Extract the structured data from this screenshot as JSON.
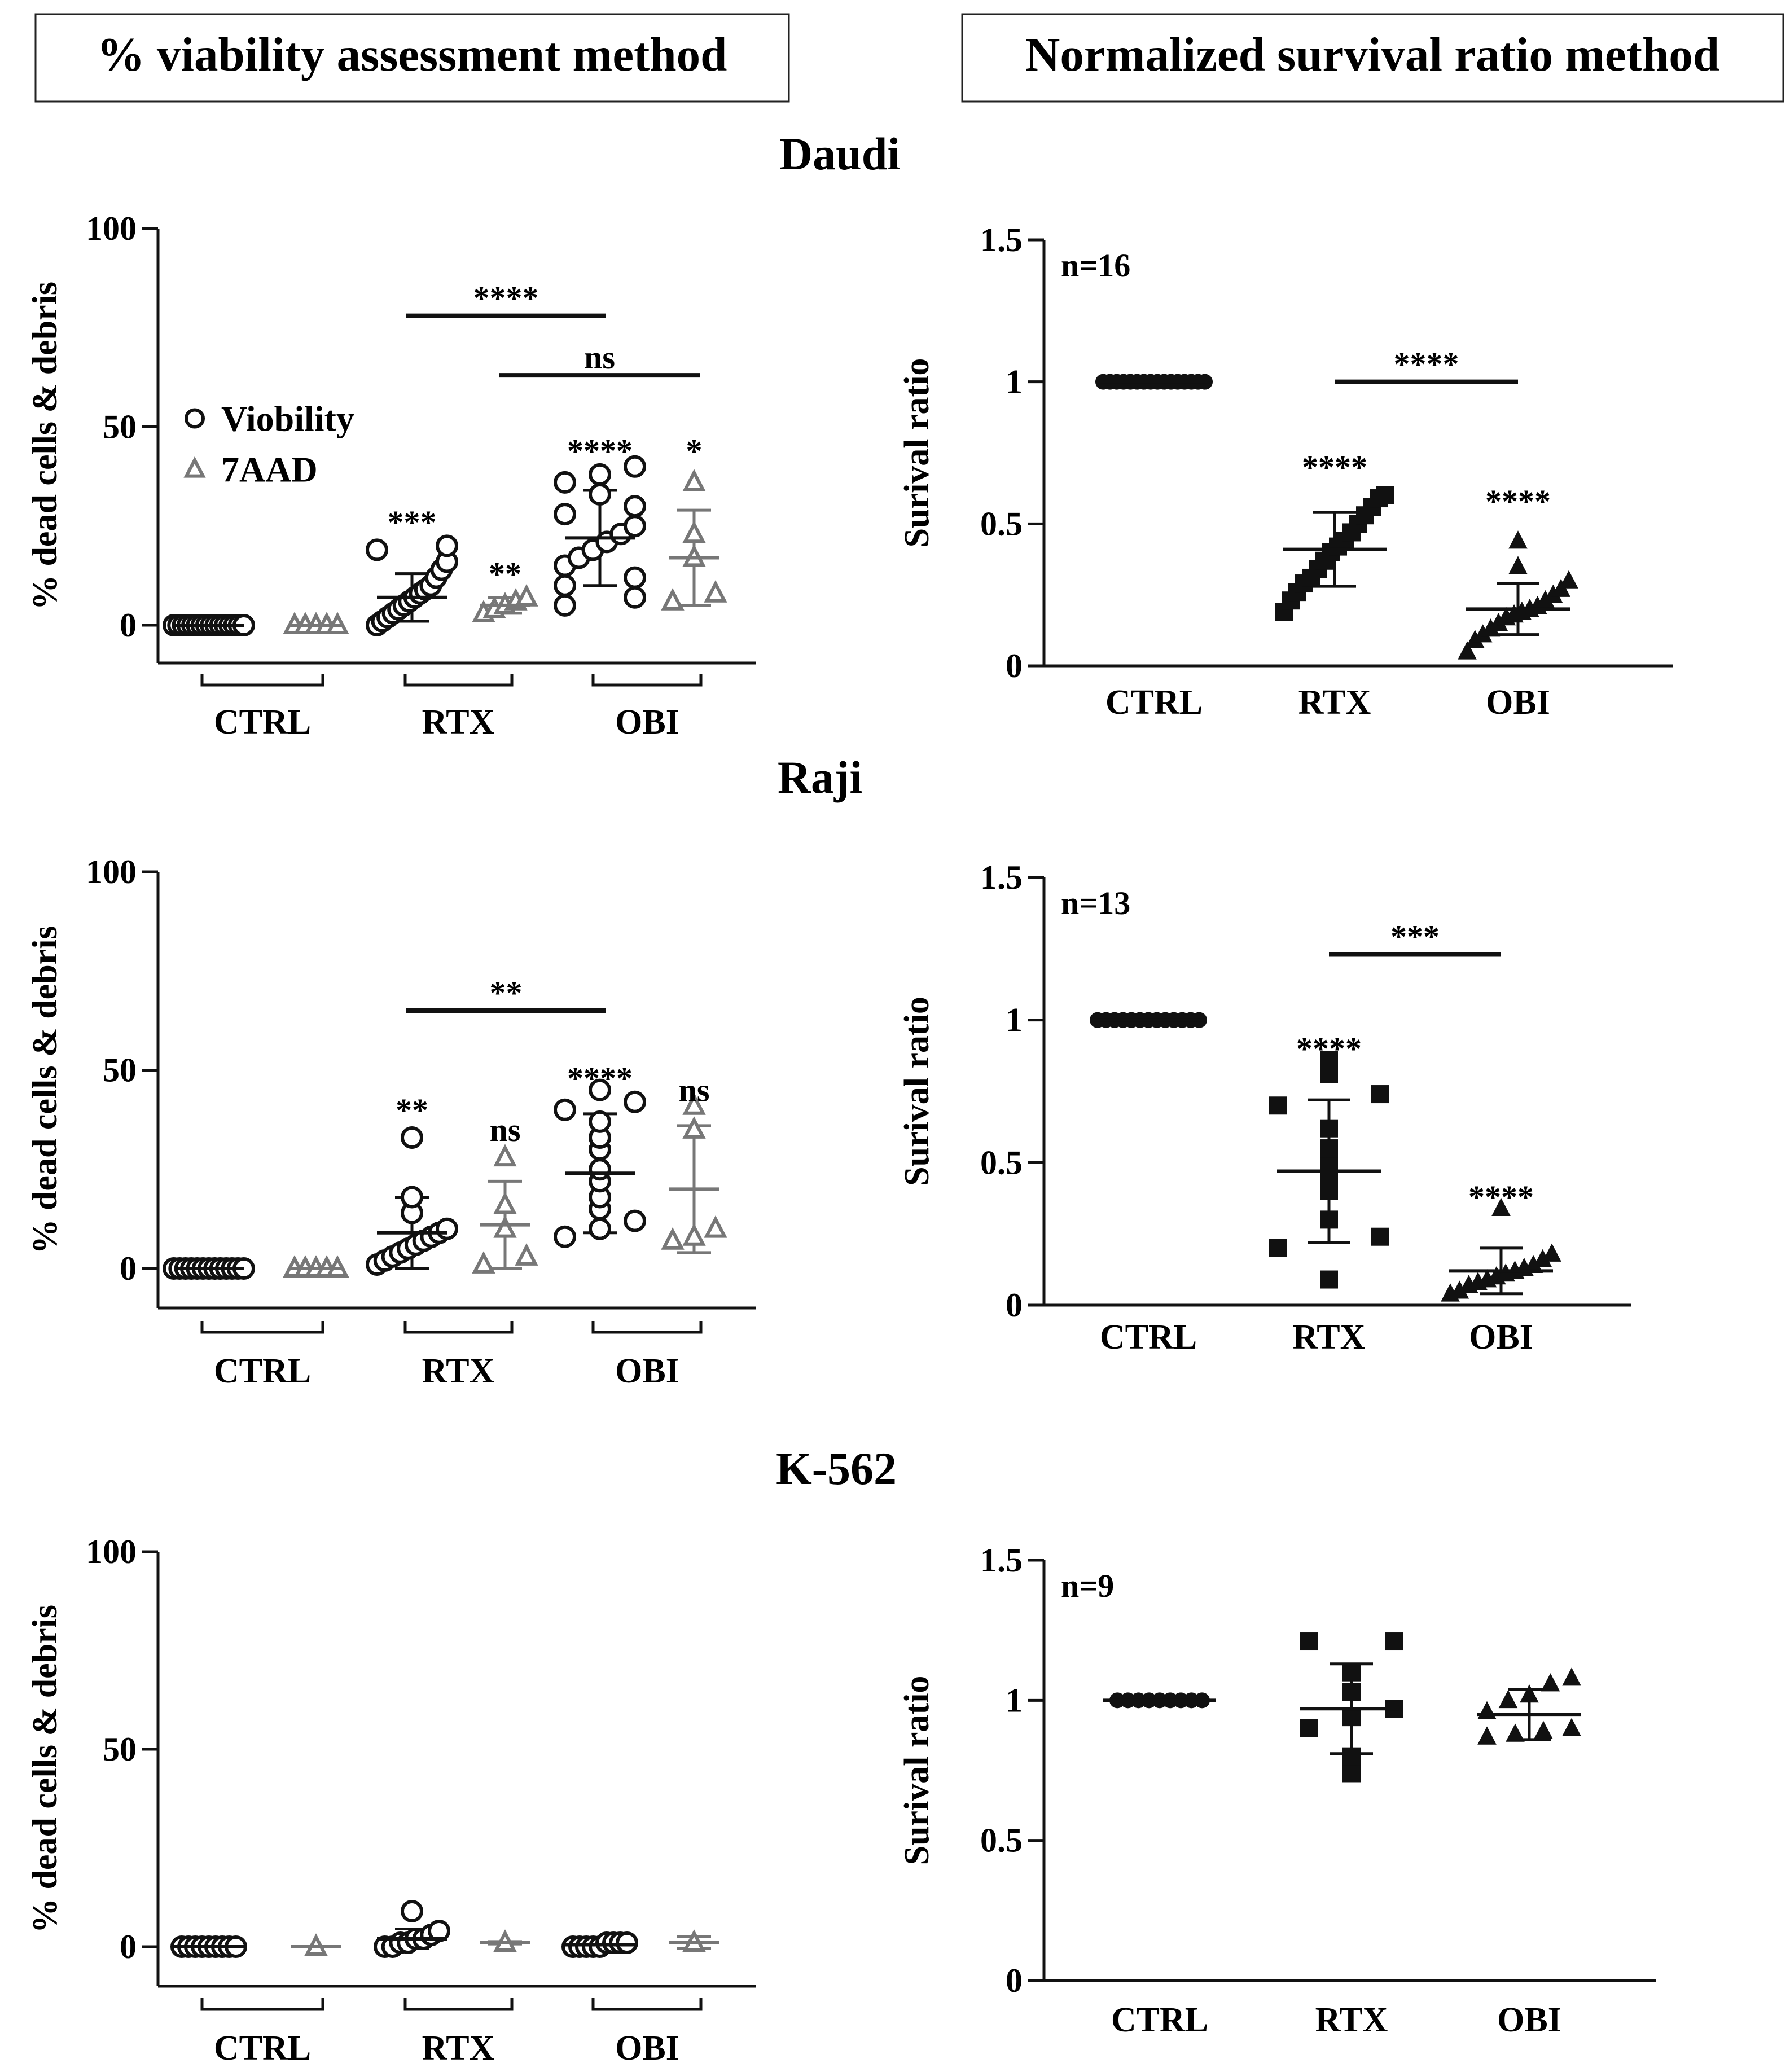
{
  "headers": {
    "left": "% viability assessment method",
    "right": "Normalized survival ratio method"
  },
  "cell_lines": [
    "Daudi",
    "Raji",
    "K-562"
  ],
  "colors": {
    "viobility": "#111111",
    "aad": "#777777",
    "ratio": "#111111"
  },
  "chart_data": [
    {
      "id": "daudi-viability",
      "type": "scatter",
      "title": "Daudi",
      "xlabel": "",
      "ylabel": "% dead cells & debris",
      "ylim": [
        0,
        100
      ],
      "yticks": [
        0,
        50,
        100
      ],
      "groups": [
        "CTRL",
        "RTX",
        "OBI"
      ],
      "legend": {
        "position": "upper-left",
        "entries": [
          "Viobility",
          "7AAD"
        ]
      },
      "series": [
        {
          "name": "Viobility",
          "marker": "circle-open",
          "columns": [
            {
              "group": "CTRL",
              "mean": 0,
              "sd": 0,
              "points": [
                0,
                0,
                0,
                0,
                0,
                0,
                0,
                0,
                0,
                0,
                0,
                0,
                0,
                0,
                0,
                0
              ]
            },
            {
              "group": "RTX",
              "mean": 7,
              "sd": 6,
              "points": [
                0,
                1,
                2,
                3,
                4,
                5,
                6,
                7,
                8,
                9,
                10,
                12,
                14,
                16,
                19,
                20
              ]
            },
            {
              "group": "OBI",
              "mean": 22,
              "sd": 12,
              "points": [
                5,
                7,
                10,
                12,
                15,
                17,
                19,
                21,
                23,
                25,
                28,
                30,
                33,
                36,
                38,
                40
              ]
            }
          ]
        },
        {
          "name": "7AAD",
          "marker": "triangle-open",
          "columns": [
            {
              "group": "CTRL",
              "mean": 0,
              "sd": 0,
              "points": [
                0,
                0,
                0,
                0,
                0
              ]
            },
            {
              "group": "RTX",
              "mean": 5,
              "sd": 2,
              "points": [
                3,
                4,
                5,
                6,
                7
              ]
            },
            {
              "group": "OBI",
              "mean": 17,
              "sd": 12,
              "points": [
                6,
                8,
                17,
                23,
                36
              ]
            }
          ]
        }
      ],
      "significance": [
        {
          "label": "****",
          "type": "bar",
          "from": 2,
          "to": 4,
          "y": 78
        },
        {
          "label": "ns",
          "type": "bar",
          "from": 3,
          "to": 5,
          "y": 63
        },
        {
          "label": "***",
          "type": "col",
          "col": 2,
          "y": 26
        },
        {
          "label": "**",
          "type": "col",
          "col": 3,
          "y": 13
        },
        {
          "label": "****",
          "type": "col",
          "col": 4,
          "y": 44
        },
        {
          "label": "*",
          "type": "col",
          "col": 5,
          "y": 44
        }
      ]
    },
    {
      "id": "daudi-ratio",
      "type": "scatter",
      "title": "Daudi",
      "xlabel": "",
      "ylabel": "Surival ratio",
      "ylim": [
        0,
        1.5
      ],
      "yticks": [
        "0",
        "0.5",
        "1",
        "1.5"
      ],
      "categories": [
        "CTRL",
        "RTX",
        "OBI"
      ],
      "n_label": "n=16",
      "series": [
        {
          "group": "CTRL",
          "marker": "circle-filled",
          "mean": 1,
          "sd": 0,
          "points": [
            1,
            1,
            1,
            1,
            1,
            1,
            1,
            1,
            1,
            1,
            1,
            1,
            1,
            1,
            1,
            1
          ]
        },
        {
          "group": "RTX",
          "marker": "square-filled",
          "mean": 0.41,
          "sd": 0.13,
          "points": [
            0.19,
            0.23,
            0.26,
            0.29,
            0.31,
            0.34,
            0.37,
            0.4,
            0.42,
            0.44,
            0.47,
            0.5,
            0.53,
            0.56,
            0.59,
            0.6
          ]
        },
        {
          "group": "OBI",
          "marker": "triangle-filled",
          "mean": 0.2,
          "sd": 0.09,
          "points": [
            0.05,
            0.09,
            0.11,
            0.13,
            0.15,
            0.17,
            0.18,
            0.19,
            0.2,
            0.21,
            0.23,
            0.25,
            0.27,
            0.3,
            0.35,
            0.44
          ]
        }
      ],
      "significance": [
        {
          "label": "****",
          "type": "bar",
          "from": 1,
          "to": 2,
          "y": 1.0
        },
        {
          "label": "****",
          "type": "col",
          "col": 1,
          "y": 0.7
        },
        {
          "label": "****",
          "type": "col",
          "col": 2,
          "y": 0.58
        }
      ]
    },
    {
      "id": "raji-viability",
      "type": "scatter",
      "title": "Raji",
      "xlabel": "",
      "ylabel": "% dead cells & debris",
      "ylim": [
        0,
        100
      ],
      "yticks": [
        0,
        50,
        100
      ],
      "groups": [
        "CTRL",
        "RTX",
        "OBI"
      ],
      "series": [
        {
          "name": "Viobility",
          "marker": "circle-open",
          "columns": [
            {
              "group": "CTRL",
              "mean": 0,
              "sd": 0,
              "points": [
                0,
                0,
                0,
                0,
                0,
                0,
                0,
                0,
                0,
                0,
                0,
                0,
                0
              ]
            },
            {
              "group": "RTX",
              "mean": 9,
              "sd": 9,
              "points": [
                1,
                2,
                3,
                4,
                5,
                6,
                7,
                8,
                9,
                10,
                14,
                18,
                33
              ]
            },
            {
              "group": "OBI",
              "mean": 24,
              "sd": 15,
              "points": [
                8,
                10,
                12,
                15,
                18,
                22,
                25,
                30,
                33,
                37,
                40,
                42,
                45
              ]
            }
          ]
        },
        {
          "name": "7AAD",
          "marker": "triangle-open",
          "columns": [
            {
              "group": "CTRL",
              "mean": 0,
              "sd": 0,
              "points": [
                0,
                0,
                0,
                0,
                0
              ]
            },
            {
              "group": "RTX",
              "mean": 11,
              "sd": 11,
              "points": [
                1,
                3,
                10,
                16,
                28
              ]
            },
            {
              "group": "OBI",
              "mean": 20,
              "sd": 16,
              "points": [
                7,
                8,
                10,
                35,
                41
              ]
            }
          ]
        }
      ],
      "significance": [
        {
          "label": "**",
          "type": "bar",
          "from": 2,
          "to": 4,
          "y": 65
        },
        {
          "label": "**",
          "type": "col",
          "col": 2,
          "y": 40
        },
        {
          "label": "ns",
          "type": "col",
          "col": 3,
          "y": 35
        },
        {
          "label": "****",
          "type": "col",
          "col": 4,
          "y": 48
        },
        {
          "label": "ns",
          "type": "col",
          "col": 5,
          "y": 45
        }
      ]
    },
    {
      "id": "raji-ratio",
      "type": "scatter",
      "title": "Raji",
      "xlabel": "",
      "ylabel": "Surival ratio",
      "ylim": [
        0,
        1.5
      ],
      "yticks": [
        "0",
        "0.5",
        "1",
        "1.5"
      ],
      "categories": [
        "CTRL",
        "RTX",
        "OBI"
      ],
      "n_label": "n=13",
      "series": [
        {
          "group": "CTRL",
          "marker": "circle-filled",
          "mean": 1,
          "sd": 0,
          "points": [
            1,
            1,
            1,
            1,
            1,
            1,
            1,
            1,
            1,
            1,
            1,
            1,
            1
          ]
        },
        {
          "group": "RTX",
          "marker": "square-filled",
          "mean": 0.47,
          "sd": 0.25,
          "points": [
            0.09,
            0.2,
            0.24,
            0.3,
            0.4,
            0.45,
            0.5,
            0.55,
            0.62,
            0.7,
            0.74,
            0.81,
            0.86
          ]
        },
        {
          "group": "OBI",
          "marker": "triangle-filled",
          "mean": 0.12,
          "sd": 0.08,
          "points": [
            0.04,
            0.05,
            0.07,
            0.08,
            0.09,
            0.1,
            0.11,
            0.12,
            0.13,
            0.14,
            0.16,
            0.18,
            0.34
          ]
        }
      ],
      "significance": [
        {
          "label": "***",
          "type": "bar",
          "from": 1,
          "to": 2,
          "y": 1.23
        },
        {
          "label": "****",
          "type": "col",
          "col": 1,
          "y": 0.9
        },
        {
          "label": "****",
          "type": "col",
          "col": 2,
          "y": 0.38
        }
      ]
    },
    {
      "id": "k562-viability",
      "type": "scatter",
      "title": "K-562",
      "xlabel": "",
      "ylabel": "% dead cells & debris",
      "ylim": [
        0,
        100
      ],
      "yticks": [
        0,
        50,
        100
      ],
      "groups": [
        "CTRL",
        "RTX",
        "OBI"
      ],
      "series": [
        {
          "name": "Viobility",
          "marker": "circle-open",
          "columns": [
            {
              "group": "CTRL",
              "mean": 0,
              "sd": 0,
              "points": [
                0,
                0,
                0,
                0,
                0,
                0,
                0,
                0,
                0
              ]
            },
            {
              "group": "RTX",
              "mean": 2,
              "sd": 2.5,
              "points": [
                0,
                0,
                1,
                1,
                2,
                2,
                3,
                4,
                9
              ]
            },
            {
              "group": "OBI",
              "mean": 0.5,
              "sd": 0.5,
              "points": [
                0,
                0,
                0,
                0,
                0,
                1,
                1,
                1,
                1
              ]
            }
          ]
        },
        {
          "name": "7AAD",
          "marker": "triangle-open",
          "columns": [
            {
              "group": "CTRL",
              "mean": 0,
              "sd": 0,
              "points": [
                0
              ]
            },
            {
              "group": "RTX",
              "mean": 1,
              "sd": 0.3,
              "points": [
                1
              ]
            },
            {
              "group": "OBI",
              "mean": 1,
              "sd": 1.5,
              "points": [
                1
              ]
            }
          ]
        }
      ],
      "significance": []
    },
    {
      "id": "k562-ratio",
      "type": "scatter",
      "title": "K-562",
      "xlabel": "",
      "ylabel": "Surival ratio",
      "ylim": [
        0,
        1.5
      ],
      "yticks": [
        "0",
        "0.5",
        "1",
        "1.5"
      ],
      "categories": [
        "CTRL",
        "RTX",
        "OBI"
      ],
      "n_label": "n=9",
      "series": [
        {
          "group": "CTRL",
          "marker": "circle-filled",
          "mean": 1,
          "sd": 0,
          "points": [
            1,
            1,
            1,
            1,
            1,
            1,
            1,
            1,
            1
          ]
        },
        {
          "group": "RTX",
          "marker": "square-filled",
          "mean": 0.97,
          "sd": 0.16,
          "points": [
            0.74,
            0.8,
            0.9,
            0.94,
            0.97,
            1.03,
            1.1,
            1.21,
            1.21
          ]
        },
        {
          "group": "OBI",
          "mean": 0.95,
          "sd": 0.09,
          "marker": "triangle-filled",
          "points": [
            0.87,
            0.88,
            0.89,
            0.9,
            0.96,
            1.0,
            1.02,
            1.06,
            1.08
          ]
        }
      ],
      "significance": []
    }
  ]
}
